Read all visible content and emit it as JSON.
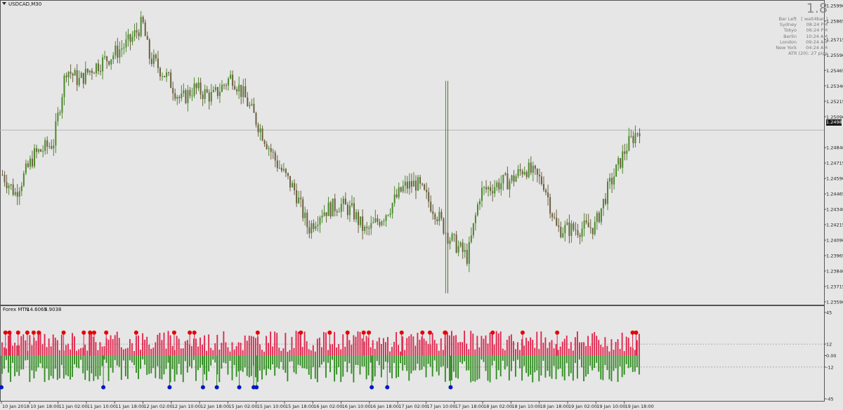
{
  "header": {
    "symbol_title": "USDCAD,M30",
    "dropdown_icon": "triangle-down-icon"
  },
  "info_panel": {
    "big_value": "1.8",
    "rows": [
      {
        "label": "Bar Left",
        "value": "[ wait4bar ]"
      },
      {
        "label": "Sydney",
        "value": "08:24 PM"
      },
      {
        "label": "Tokyo",
        "value": "06:24 PM"
      },
      {
        "label": "Berlin",
        "value": "10:24 AM"
      },
      {
        "label": "London",
        "value": "09:24 AM"
      },
      {
        "label": "New York",
        "value": "04:24 AM"
      }
    ],
    "atr_text": "ATR (20): 27 pips"
  },
  "indicator": {
    "title": "Forex MTN",
    "value1": "14.6065",
    "value2": "4.9038"
  },
  "last_price": "1.24982",
  "colors": {
    "bull_candle": "#4a8a2a",
    "bear_candle": "#6b5f3f",
    "hist_pos": "#e0234a",
    "hist_neg": "#2e8b1e",
    "dot_top": "#e60000",
    "dot_bottom": "#0018c8",
    "background": "#e6e6e6"
  },
  "chart_data": [
    {
      "type": "candlestick",
      "title": "USDCAD,M30",
      "ylim": [
        1.2359,
        1.2599
      ],
      "y_ticks": [
        "1.25990",
        "1.25865",
        "1.25715",
        "1.25590",
        "1.25465",
        "1.25340",
        "1.25215",
        "1.25090",
        "1.24840",
        "1.24715",
        "1.24590",
        "1.24465",
        "1.24340",
        "1.24215",
        "1.24090",
        "1.23965",
        "1.23840",
        "1.23715",
        "1.23590"
      ],
      "y_tick_values": [
        1.2599,
        1.25865,
        1.25715,
        1.2559,
        1.25465,
        1.2534,
        1.25215,
        1.2509,
        1.2484,
        1.24715,
        1.2459,
        1.24465,
        1.2434,
        1.24215,
        1.2409,
        1.23965,
        1.2384,
        1.23715,
        1.2359
      ],
      "horizontal_line": 1.24982,
      "close_path_x": [
        0,
        2,
        5,
        8,
        10,
        12,
        14,
        17,
        20,
        22,
        23,
        26,
        28,
        30,
        33,
        36,
        38,
        40,
        43,
        46,
        48,
        50,
        53,
        55,
        57,
        60,
        63,
        65,
        68,
        70,
        73,
        75,
        78,
        80,
        82,
        85,
        87,
        90,
        93,
        95,
        98,
        100
      ],
      "close_path_y": [
        1.2462,
        1.2447,
        1.2478,
        1.2488,
        1.2548,
        1.2538,
        1.2548,
        1.2558,
        1.257,
        1.2585,
        1.2558,
        1.254,
        1.2522,
        1.2532,
        1.2525,
        1.2542,
        1.2525,
        1.2504,
        1.2472,
        1.2448,
        1.2418,
        1.2432,
        1.2438,
        1.2432,
        1.2415,
        1.243,
        1.2452,
        1.2455,
        1.2432,
        1.2412,
        1.2395,
        1.2448,
        1.2455,
        1.2458,
        1.2468,
        1.2455,
        1.2418,
        1.2418,
        1.242,
        1.245,
        1.2485,
        1.25
      ],
      "x_ticks": [
        "10 Jan 2018",
        "10 Jan 18:00",
        "11 Jan 02:00",
        "11 Jan 10:00",
        "11 Jan 18:00",
        "12 Jan 02:00",
        "12 Jan 10:00",
        "12 Jan 18:00",
        "15 Jan 02:00",
        "15 Jan 10:00",
        "15 Jan 18:00",
        "16 Jan 02:00",
        "16 Jan 10:00",
        "16 Jan 18:00",
        "17 Jan 02:00",
        "17 Jan 10:00",
        "17 Jan 18:00",
        "18 Jan 02:00",
        "18 Jan 10:00",
        "18 Jan 18:00",
        "19 Jan 02:00",
        "19 Jan 10:00",
        "19 Jan 18:00"
      ]
    },
    {
      "type": "bar",
      "title": "Forex MTN",
      "ylim": [
        -45,
        45
      ],
      "y_ticks": [
        "45",
        "12",
        "0.00",
        "-12",
        "-45"
      ],
      "y_tick_values": [
        45,
        12,
        0,
        -12,
        -45
      ],
      "levels": [
        12,
        -12
      ],
      "top_dot_positions": [
        7,
        14,
        29,
        45,
        56,
        65,
        108,
        143,
        154,
        161,
        182,
        234,
        300,
        327,
        335,
        445,
        520,
        570,
        601,
        629,
        638,
        695,
        731,
        744,
        770,
        771,
        853,
        905,
        965,
        1096,
        1102
      ],
      "bottom_dot_positions": [
        0,
        177,
        292,
        350,
        374,
        413,
        438,
        443,
        643,
        670,
        780
      ]
    }
  ]
}
